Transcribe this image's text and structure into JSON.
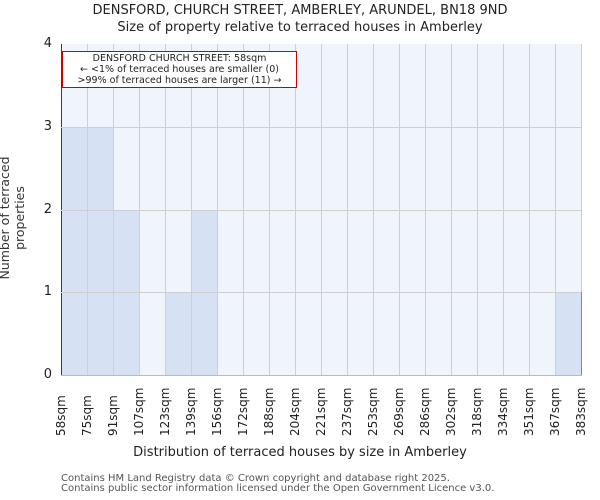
{
  "header": {
    "title": "DENSFORD, CHURCH STREET, AMBERLEY, ARUNDEL, BN18 9ND",
    "subtitle": "Size of property relative to terraced houses in Amberley"
  },
  "annotation": {
    "line1": "DENSFORD CHURCH STREET: 58sqm",
    "line2": "← <1% of terraced houses are smaller (0)",
    "line3": ">99% of terraced houses are larger (11) →"
  },
  "axes": {
    "ylabel": "Number of terraced properties",
    "xlabel": "Distribution of terraced houses by size in Amberley",
    "yticks": [
      "0",
      "1",
      "2",
      "3",
      "4"
    ]
  },
  "footer": {
    "line1": "Contains HM Land Registry data © Crown copyright and database right 2025.",
    "line2": "Contains public sector information licensed under the Open Government Licence v3.0."
  },
  "colors": {
    "bar_fill": "#d6e2f3",
    "bar_edge": "#5b8fd0",
    "marker": "#cc0000",
    "plot_bg": "#f0f4fb"
  },
  "chart_data": {
    "type": "bar",
    "title": "DENSFORD, CHURCH STREET, AMBERLEY, ARUNDEL, BN18 9ND",
    "subtitle": "Size of property relative to terraced houses in Amberley",
    "xlabel": "Distribution of terraced houses by size in Amberley",
    "ylabel": "Number of terraced properties",
    "categories": [
      "58sqm",
      "75sqm",
      "91sqm",
      "107sqm",
      "123sqm",
      "139sqm",
      "156sqm",
      "172sqm",
      "188sqm",
      "204sqm",
      "221sqm",
      "237sqm",
      "253sqm",
      "269sqm",
      "286sqm",
      "302sqm",
      "318sqm",
      "334sqm",
      "351sqm",
      "367sqm",
      "383sqm"
    ],
    "bins": [
      {
        "from": "58sqm",
        "to": "75sqm",
        "count": 3
      },
      {
        "from": "75sqm",
        "to": "91sqm",
        "count": 3
      },
      {
        "from": "91sqm",
        "to": "107sqm",
        "count": 2
      },
      {
        "from": "107sqm",
        "to": "123sqm",
        "count": 0
      },
      {
        "from": "123sqm",
        "to": "139sqm",
        "count": 1
      },
      {
        "from": "139sqm",
        "to": "156sqm",
        "count": 2
      },
      {
        "from": "156sqm",
        "to": "172sqm",
        "count": 0
      },
      {
        "from": "172sqm",
        "to": "188sqm",
        "count": 0
      },
      {
        "from": "188sqm",
        "to": "204sqm",
        "count": 0
      },
      {
        "from": "204sqm",
        "to": "221sqm",
        "count": 0
      },
      {
        "from": "221sqm",
        "to": "237sqm",
        "count": 0
      },
      {
        "from": "237sqm",
        "to": "253sqm",
        "count": 0
      },
      {
        "from": "253sqm",
        "to": "269sqm",
        "count": 0
      },
      {
        "from": "269sqm",
        "to": "286sqm",
        "count": 0
      },
      {
        "from": "286sqm",
        "to": "302sqm",
        "count": 0
      },
      {
        "from": "302sqm",
        "to": "318sqm",
        "count": 0
      },
      {
        "from": "318sqm",
        "to": "334sqm",
        "count": 0
      },
      {
        "from": "334sqm",
        "to": "351sqm",
        "count": 0
      },
      {
        "from": "351sqm",
        "to": "367sqm",
        "count": 0
      },
      {
        "from": "367sqm",
        "to": "383sqm",
        "count": 1
      }
    ],
    "values": [
      3,
      3,
      2,
      0,
      1,
      2,
      0,
      0,
      0,
      0,
      0,
      0,
      0,
      0,
      0,
      0,
      0,
      0,
      0,
      1
    ],
    "ylim": [
      0,
      4
    ],
    "grid": true,
    "marker": {
      "value": "58sqm",
      "label": "DENSFORD CHURCH STREET: 58sqm"
    },
    "annotations": [
      "DENSFORD CHURCH STREET: 58sqm",
      "← <1% of terraced houses are smaller (0)",
      ">99% of terraced houses are larger (11) →"
    ]
  }
}
